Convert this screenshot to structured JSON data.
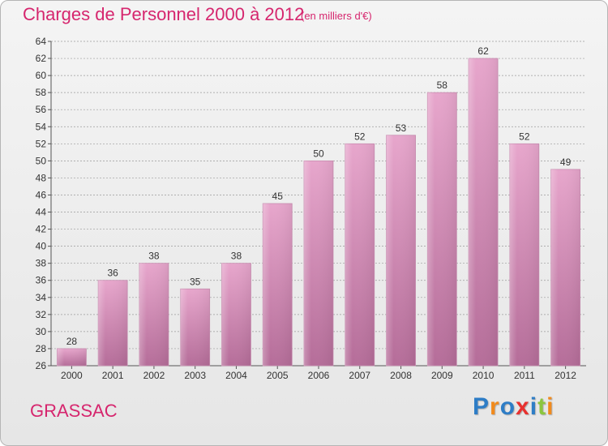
{
  "header": {
    "title": "Charges de Personnel 2000 à 2012",
    "subtitle": "(en milliers d'€)"
  },
  "footer": {
    "commune": "GRASSAC",
    "logo_text": "Proxiti",
    "logo_letters": [
      "P",
      "r",
      "o",
      "x",
      "i",
      "t",
      "i"
    ],
    "logo_colors": [
      "#2e7dc6",
      "#f18a1c",
      "#2e7dc6",
      "#e8312f",
      "#2e7dc6",
      "#8cc63f",
      "#f18a1c"
    ]
  },
  "colors": {
    "title": "#d6266e",
    "bar_top": "#e7a6cc",
    "bar_bottom": "#b56d99",
    "grid": "#9a9a9a",
    "text": "#333333"
  },
  "chart_data": {
    "type": "bar",
    "categories": [
      "2000",
      "2001",
      "2002",
      "2003",
      "2004",
      "2005",
      "2006",
      "2007",
      "2008",
      "2009",
      "2010",
      "2011",
      "2012"
    ],
    "values": [
      28,
      36,
      38,
      35,
      38,
      45,
      50,
      52,
      53,
      58,
      62,
      52,
      49
    ],
    "title": "Charges de Personnel 2000 à 2012",
    "subtitle": "(en milliers d'€)",
    "xlabel": "",
    "ylabel": "",
    "ylim": [
      26,
      64
    ],
    "yticks": [
      26,
      28,
      30,
      32,
      34,
      36,
      38,
      40,
      42,
      44,
      46,
      48,
      50,
      52,
      54,
      56,
      58,
      60,
      62,
      64
    ],
    "grid": true,
    "data_labels": true
  }
}
